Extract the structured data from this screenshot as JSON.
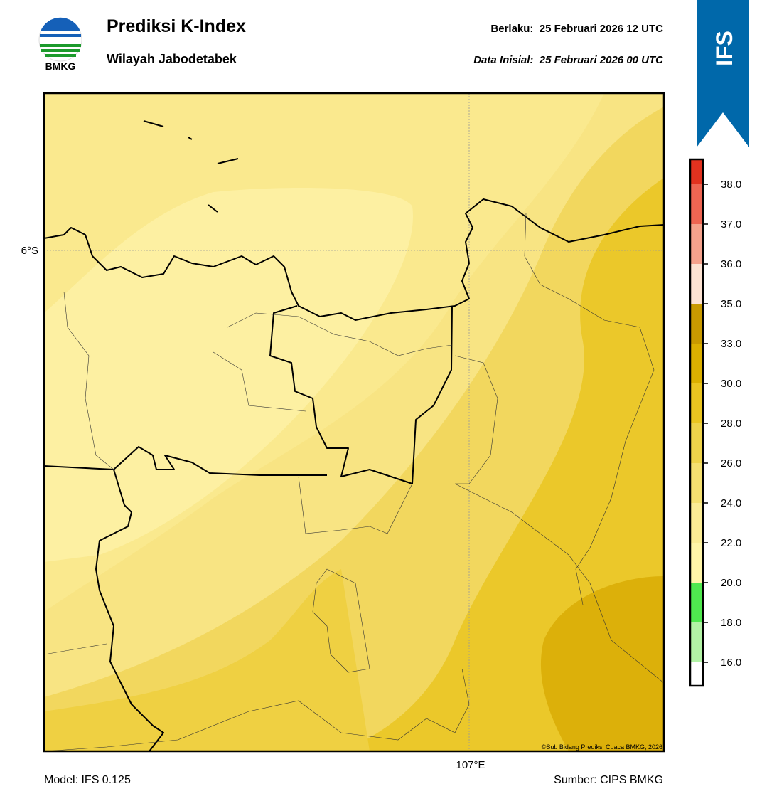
{
  "header": {
    "logo_text": "BMKG",
    "title": "Prediksi K-Index",
    "subtitle": "Wilayah Jabodetabek",
    "valid": "Berlaku:  25 Februari 2026 12 UTC",
    "init": "Data Inisial:  25 Februari 2026 00 UTC",
    "badge": "IFS"
  },
  "map": {
    "lat_label": "6°S",
    "lon_label": "107°E",
    "credit": "©Sub Bidang Prediksi Cuaca BMKG, 2026"
  },
  "colorbar": {
    "labels": [
      "38.0",
      "37.0",
      "36.0",
      "35.0",
      "33.0",
      "30.0",
      "28.0",
      "26.0",
      "24.0",
      "22.0",
      "20.0",
      "18.0",
      "16.0"
    ],
    "colors": [
      "#e2321f",
      "#ee6552",
      "#f5a28c",
      "#fde3d2",
      "#c99a00",
      "#dcb000",
      "#ebc520",
      "#efd34a",
      "#f5e070",
      "#fbec95",
      "#fff5a8",
      "#4fe84f",
      "#b2f3a6",
      "#ffffff"
    ]
  },
  "footer": {
    "model": "Model: IFS 0.125",
    "source": "Sumber: CIPS BMKG"
  }
}
